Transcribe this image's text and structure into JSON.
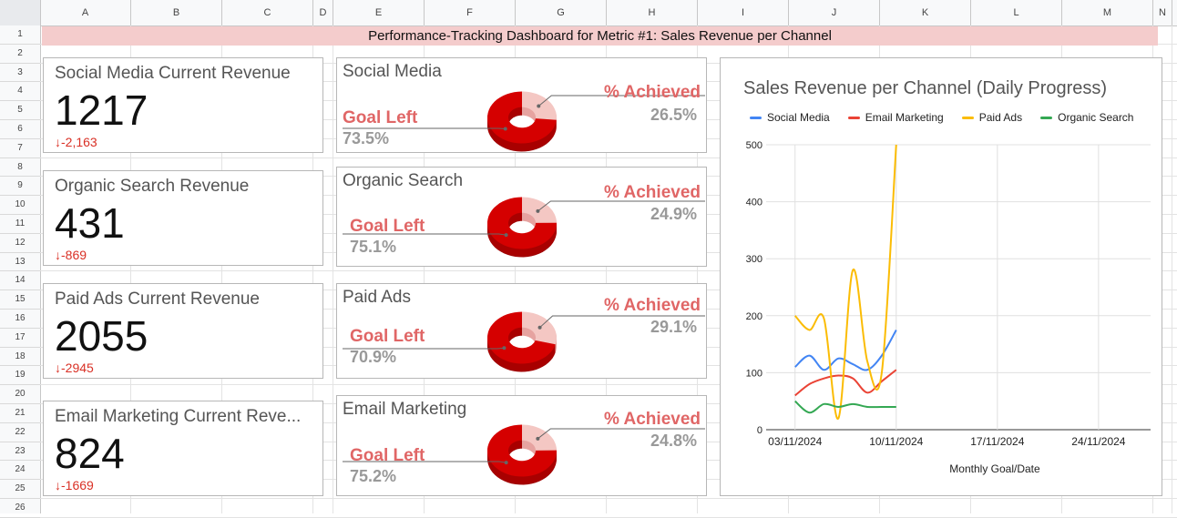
{
  "columns": [
    "A",
    "B",
    "C",
    "D",
    "E",
    "F",
    "G",
    "H",
    "I",
    "J",
    "K",
    "L",
    "M",
    "N"
  ],
  "rows": [
    "1",
    "2",
    "3",
    "4",
    "5",
    "6",
    "7",
    "8",
    "9",
    "10",
    "11",
    "12",
    "13",
    "14",
    "15",
    "16",
    "17",
    "18",
    "19",
    "20",
    "21",
    "22",
    "23",
    "24",
    "25",
    "26"
  ],
  "title": "Performance-Tracking Dashboard for Metric #1: Sales Revenue per Channel",
  "kpis": [
    {
      "label": "Social Media Current Revenue",
      "value": "1217",
      "delta": "-2,163"
    },
    {
      "label": "Organic Search Revenue",
      "value": "431",
      "delta": "-869"
    },
    {
      "label": "Paid Ads Current Revenue",
      "value": "2055",
      "delta": "-2945"
    },
    {
      "label": "Email Marketing Current Reve...",
      "value": "824",
      "delta": "-1669"
    }
  ],
  "gauges": [
    {
      "label": "Social Media",
      "achieved_label": "% Achieved",
      "achieved": "26.5%",
      "goal_label": "Goal Left",
      "goal": "73.5%"
    },
    {
      "label": "Organic Search",
      "achieved_label": "% Achieved",
      "achieved": "24.9%",
      "goal_label": "Goal Left",
      "goal": "75.1%"
    },
    {
      "label": "Paid Ads",
      "achieved_label": "% Achieved",
      "achieved": "29.1%",
      "goal_label": "Goal Left",
      "goal": "70.9%"
    },
    {
      "label": "Email Marketing",
      "achieved_label": "% Achieved",
      "achieved": "24.8%",
      "goal_label": "Goal Left",
      "goal": "75.2%"
    }
  ],
  "colors": {
    "achieved": "#f4c7c3",
    "goal": "#d50000",
    "accent": "#e06666"
  },
  "chart_data": {
    "type": "line",
    "title": "Sales Revenue per Channel (Daily Progress)",
    "xlabel": "Monthly Goal/Date",
    "ylabel": "",
    "ylim": [
      0,
      500
    ],
    "yticks": [
      "0",
      "100",
      "200",
      "300",
      "400",
      "500"
    ],
    "xticks": [
      "03/11/2024",
      "10/11/2024",
      "17/11/2024",
      "24/11/2024"
    ],
    "x": [
      "03/11/2024",
      "04/11/2024",
      "05/11/2024",
      "06/11/2024",
      "07/11/2024",
      "08/11/2024",
      "09/11/2024",
      "10/11/2024"
    ],
    "series": [
      {
        "name": "Social Media",
        "color": "#4285f4",
        "values": [
          110,
          130,
          105,
          125,
          115,
          105,
          130,
          175
        ]
      },
      {
        "name": "Email Marketing",
        "color": "#ea4335",
        "values": [
          60,
          80,
          90,
          95,
          90,
          65,
          85,
          105
        ]
      },
      {
        "name": "Paid Ads",
        "color": "#fbbc04",
        "values": [
          200,
          175,
          195,
          20,
          280,
          120,
          100,
          500
        ]
      },
      {
        "name": "Organic Search",
        "color": "#34a853",
        "values": [
          50,
          30,
          45,
          40,
          45,
          40,
          40,
          40
        ]
      }
    ]
  }
}
